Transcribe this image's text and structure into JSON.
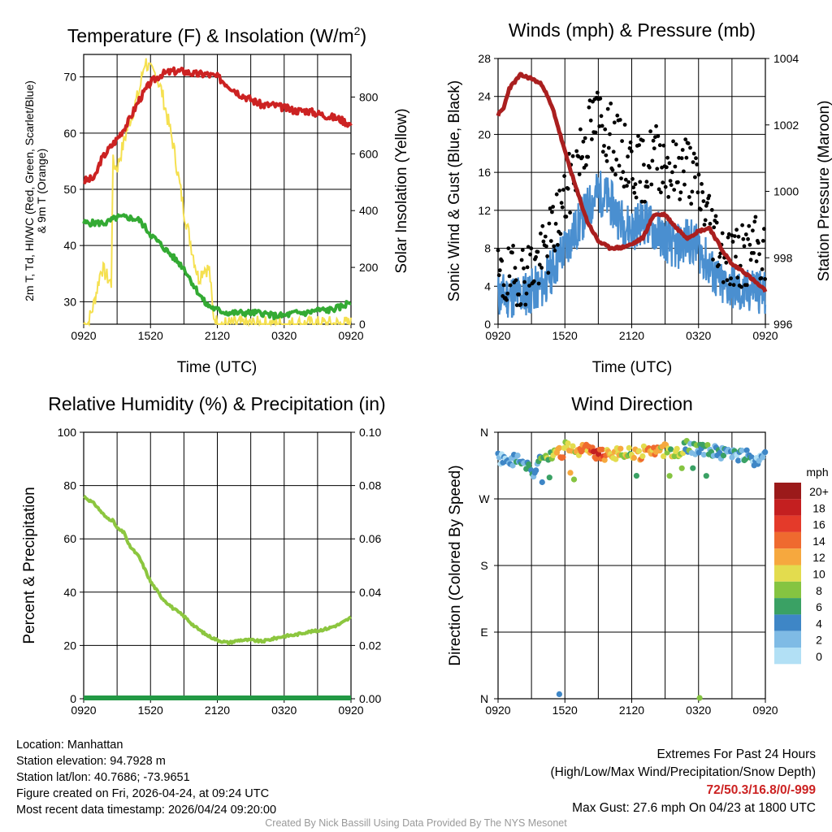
{
  "colors": {
    "red": "#cc2222",
    "green": "#33aa33",
    "yellow": "#f5e050",
    "blue": "#4a8fd0",
    "maroon": "#aa1f1f",
    "lightgreen": "#8cc63f",
    "darkgreen": "#229944",
    "black": "#000000",
    "speed_scale": [
      "#b2e0f5",
      "#7fbbe5",
      "#3e86c6",
      "#3aa164",
      "#85c441",
      "#e3dc4e",
      "#f6a83e",
      "#ef6a2f",
      "#e43a2a",
      "#c41f20",
      "#9b1a1a"
    ]
  },
  "x_tick_labels": [
    "0920",
    "1520",
    "2120",
    "0320",
    "0920"
  ],
  "panels": {
    "temp": {
      "title": "Temperature (F) & Insolation (W/m²)",
      "title_main": "Temperature (F) & Insolation (W/m",
      "title_sup": "2",
      "title_close": ")",
      "ylabel_line1": "2m T, Td, HI/WC (Red, Green, Scarlet/Blue)",
      "ylabel_line2": "& 9m T (Orange)",
      "y2label": "Solar Insolation (Yellow)",
      "xlabel": "Time (UTC)"
    },
    "wind": {
      "title": "Winds (mph) & Pressure (mb)",
      "ylabel": "Sonic Wind & Gust (Blue, Black)",
      "y2label": "Station Pressure (Maroon)",
      "xlabel": "Time (UTC)"
    },
    "rh": {
      "title": "Relative Humidity (%) & Precipitation (in)",
      "ylabel": "Percent & Precipitation"
    },
    "dir": {
      "title": "Wind Direction",
      "ylabel": "Direction (Colored By Speed)",
      "legend_title": "mph",
      "legend_labels": [
        "0",
        "2",
        "4",
        "6",
        "8",
        "10",
        "12",
        "14",
        "16",
        "18",
        "20+"
      ]
    }
  },
  "chart_data": [
    {
      "type": "line",
      "title": "Temperature (F) & Insolation (W/m2)",
      "xlabel": "Time (UTC)",
      "ylabel": "2m T, Td, HI/WC (Red, Green, Scarlet/Blue) & 9m T (Orange)",
      "y2label": "Solar Insolation (Yellow)",
      "x_hours": [
        0,
        24
      ],
      "xticks": [
        "0920",
        "1520",
        "2120",
        "0320",
        "0920"
      ],
      "ylim": [
        26,
        74
      ],
      "yticks": [
        30,
        40,
        50,
        60,
        70
      ],
      "y2lim": [
        0,
        950
      ],
      "y2ticks": [
        0,
        200,
        400,
        600,
        800
      ],
      "series": [
        {
          "name": "2m Temperature",
          "axis": "left",
          "x": [
            0,
            1,
            1.5,
            2,
            3,
            4,
            5,
            6,
            7,
            8,
            9,
            10,
            11,
            12,
            13,
            14,
            15,
            16,
            17,
            18,
            19,
            20,
            21,
            22,
            23,
            24
          ],
          "values": [
            51.5,
            52,
            55,
            56.5,
            59,
            62,
            66,
            69,
            70.5,
            71,
            71,
            70.5,
            70.5,
            70,
            68.5,
            67,
            66,
            65,
            65,
            64.5,
            64,
            64,
            63.5,
            63,
            62.5,
            61.5
          ]
        },
        {
          "name": "2m Dewpoint",
          "axis": "left",
          "x": [
            0,
            1,
            2,
            3,
            4,
            5,
            6,
            7,
            8,
            9,
            10,
            11,
            12,
            13,
            14,
            15,
            16,
            17,
            18,
            19,
            20,
            21,
            22,
            23,
            24
          ],
          "values": [
            44,
            44,
            44,
            45,
            45,
            44.5,
            42,
            40,
            38,
            36,
            32.5,
            29.5,
            28.5,
            28,
            28,
            28,
            28,
            27.5,
            27.5,
            28,
            28,
            28.5,
            28.5,
            29,
            30
          ]
        },
        {
          "name": "Solar Insolation",
          "axis": "right",
          "x": [
            0,
            0.4,
            0.9,
            1.6,
            2.5,
            2.6,
            3,
            4,
            5,
            5.5,
            6,
            6.5,
            7,
            8,
            9,
            9.8,
            10.3,
            10.8,
            11.3,
            11.6,
            12,
            13,
            18,
            24
          ],
          "values": [
            0,
            5,
            70,
            200,
            140,
            570,
            550,
            700,
            820,
            930,
            890,
            880,
            820,
            640,
            400,
            250,
            160,
            200,
            190,
            40,
            0,
            0,
            0,
            0
          ]
        }
      ]
    },
    {
      "type": "line",
      "title": "Winds (mph) & Pressure (mb)",
      "xlabel": "Time (UTC)",
      "ylabel": "Sonic Wind & Gust (Blue, Black)",
      "y2label": "Station Pressure (Maroon)",
      "x_hours": [
        0,
        24
      ],
      "xticks": [
        "0920",
        "1520",
        "2120",
        "0320",
        "0920"
      ],
      "ylim": [
        0,
        28
      ],
      "yticks": [
        0,
        4,
        8,
        12,
        16,
        20,
        24,
        28
      ],
      "y2lim": [
        996,
        1004
      ],
      "y2ticks": [
        996,
        998,
        1000,
        1002,
        1004
      ],
      "series": [
        {
          "name": "Sonic Wind",
          "axis": "left",
          "x": [
            0,
            2,
            4,
            5,
            6,
            7,
            8,
            9,
            10,
            11,
            12,
            13,
            14,
            15,
            16,
            17,
            18,
            19,
            20,
            21,
            22,
            23,
            24
          ],
          "values": [
            3,
            3,
            4,
            6,
            8,
            10,
            12,
            14,
            13,
            11,
            10,
            11,
            10,
            9,
            8,
            9,
            8,
            6,
            4,
            4,
            3,
            4,
            3
          ]
        },
        {
          "name": "Gust",
          "axis": "left",
          "x": [
            0,
            2,
            4,
            5,
            6,
            7,
            8,
            9,
            10,
            11,
            12,
            13,
            14,
            15,
            16,
            17,
            18,
            19,
            20,
            21,
            22,
            23,
            24
          ],
          "values": [
            4.5,
            5,
            7,
            10,
            13,
            17,
            20,
            22,
            20,
            18,
            17,
            16,
            18,
            17,
            16,
            17,
            14,
            11,
            8,
            7,
            7,
            8,
            7
          ]
        },
        {
          "name": "Station Pressure",
          "axis": "right",
          "x": [
            0,
            0.5,
            1,
            2,
            3,
            4,
            5,
            6,
            7,
            8,
            9,
            10,
            11,
            12,
            13,
            14,
            15,
            16,
            17,
            18,
            19,
            20,
            21,
            22,
            23,
            24
          ],
          "values": [
            1002.3,
            1002.5,
            1003.1,
            1003.5,
            1003.4,
            1003.2,
            1002.4,
            1001.2,
            1000.1,
            999.1,
            998.5,
            998.3,
            998.3,
            998.4,
            998.6,
            999.3,
            999.3,
            998.9,
            998.6,
            998.8,
            998.9,
            998.3,
            997.8,
            997.6,
            997.3,
            997.0
          ]
        }
      ]
    },
    {
      "type": "line",
      "title": "Relative Humidity (%) & Precipitation (in)",
      "ylabel": "Percent & Precipitation",
      "x_hours": [
        0,
        24
      ],
      "xticks": [
        "0920",
        "1520",
        "2120",
        "0320",
        "0920"
      ],
      "ylim": [
        0,
        100
      ],
      "yticks": [
        0,
        20,
        40,
        60,
        80,
        100
      ],
      "y2lim": [
        0,
        0.1
      ],
      "y2ticks": [
        "0.00",
        "0.02",
        "0.04",
        "0.06",
        "0.08",
        "0.10"
      ],
      "series": [
        {
          "name": "Relative Humidity",
          "axis": "left",
          "x": [
            0,
            1,
            2,
            2.6,
            3,
            3.7,
            4,
            5,
            6,
            7,
            8,
            9,
            10,
            11,
            12,
            13,
            14,
            15,
            16,
            17,
            18,
            19,
            20,
            21,
            22,
            23,
            24
          ],
          "values": [
            76,
            73,
            68,
            67,
            64,
            62,
            58,
            53,
            44,
            38,
            34,
            31,
            27,
            24,
            22,
            21,
            22,
            22,
            21.5,
            22.5,
            23.5,
            24,
            25,
            25.5,
            26.5,
            28,
            30.5
          ]
        },
        {
          "name": "Precipitation",
          "axis": "right",
          "x": [
            0,
            24
          ],
          "values": [
            0,
            0
          ]
        }
      ]
    },
    {
      "type": "scatter",
      "title": "Wind Direction",
      "ylabel": "Direction (Colored By Speed)",
      "x_hours": [
        0,
        24
      ],
      "xticks": [
        "0920",
        "1520",
        "2120",
        "0320",
        "0920"
      ],
      "yticks": [
        "N",
        "E",
        "S",
        "W",
        "N"
      ],
      "ylim_degrees": [
        0,
        360
      ],
      "color_scale_mph": [
        "0",
        "2",
        "4",
        "6",
        "8",
        "10",
        "12",
        "14",
        "16",
        "18",
        "20+"
      ],
      "series": [
        {
          "name": "Direction",
          "x": [
            0,
            1,
            2,
            2.5,
            3,
            3.5,
            4,
            5,
            5.8,
            6,
            7,
            8,
            9,
            10,
            11,
            12,
            13,
            14,
            15,
            16,
            17,
            18,
            19,
            20,
            21,
            22,
            23,
            24
          ],
          "degrees": [
            325,
            325,
            320,
            315,
            305,
            315,
            325,
            330,
            332,
            340,
            333,
            335,
            330,
            332,
            333,
            330,
            332,
            333,
            335,
            335,
            340,
            338,
            335,
            333,
            330,
            330,
            320,
            335
          ],
          "speed_mph": [
            2,
            2,
            3,
            4,
            3,
            4,
            6,
            9,
            14,
            10,
            10,
            12,
            16,
            12,
            10,
            8,
            11,
            12,
            10,
            8,
            6,
            5,
            4,
            4,
            4,
            3,
            3,
            4
          ]
        },
        {
          "name": "Outliers",
          "x": [
            5.5,
            18.1
          ],
          "degrees": [
            5,
            0
          ],
          "speed_mph": [
            4,
            8
          ]
        }
      ]
    }
  ],
  "info": {
    "location": "Location: Manhattan",
    "elevation": "Station elevation: 94.7928 m",
    "latlon": "Station lat/lon: 40.7686; -73.9651",
    "created": "Figure created on Fri, 2026-04-24, at 09:24 UTC",
    "recent": "Most recent data timestamp: 2026/04/24 09:20:00"
  },
  "extremes": {
    "title": "Extremes For Past 24 Hours",
    "subtitle": "(High/Low/Max Wind/Precipitation/Snow Depth)",
    "values": "72/50.3/16.8/0/-999",
    "gust": "Max Gust: 27.6 mph On 04/23 at 1800 UTC"
  },
  "credit": "Created By Nick Bassill Using Data Provided By The NYS Mesonet"
}
